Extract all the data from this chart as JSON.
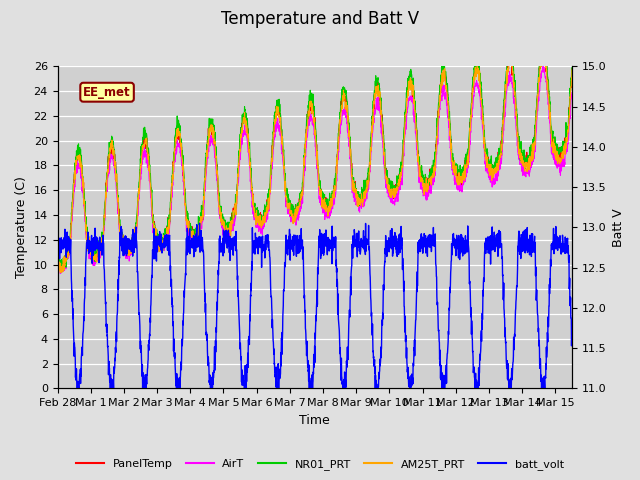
{
  "title": "Temperature and Batt V",
  "xlabel": "Time",
  "ylabel_left": "Temperature (C)",
  "ylabel_right": "Batt V",
  "ylim_left": [
    0,
    26
  ],
  "ylim_right": [
    11.0,
    15.0
  ],
  "yticks_left": [
    0,
    2,
    4,
    6,
    8,
    10,
    12,
    14,
    16,
    18,
    20,
    22,
    24,
    26
  ],
  "yticks_right": [
    11.0,
    11.5,
    12.0,
    12.5,
    13.0,
    13.5,
    14.0,
    14.5,
    15.0
  ],
  "background_color": "#e0e0e0",
  "plot_bg_color": "#d0d0d0",
  "grid_color": "#ffffff",
  "annotation_text": "EE_met",
  "annotation_bg": "#ffffa0",
  "annotation_border": "#8b0000",
  "annotation_text_color": "#8b0000",
  "series_colors": {
    "PanelTemp": "#ff0000",
    "AirT": "#ff00ff",
    "NR01_PRT": "#00cc00",
    "AM25T_PRT": "#ffa500",
    "batt_volt": "#0000ff"
  },
  "legend_entries": [
    "PanelTemp",
    "AirT",
    "NR01_PRT",
    "AM25T_PRT",
    "batt_volt"
  ],
  "xlim": [
    0,
    15.5
  ],
  "xtick_positions": [
    0,
    1,
    2,
    3,
    4,
    5,
    6,
    7,
    8,
    9,
    10,
    11,
    12,
    13,
    14,
    15
  ],
  "xtick_labels": [
    "Feb 28",
    "Mar 1",
    "Mar 2",
    "Mar 3",
    "Mar 4",
    "Mar 5",
    "Mar 6",
    "Mar 7",
    "Mar 8",
    "Mar 9",
    "Mar 10",
    "Mar 11",
    "Mar 12",
    "Mar 13",
    "Mar 14",
    "Mar 15"
  ],
  "title_fontsize": 12,
  "axis_fontsize": 9,
  "tick_fontsize": 8,
  "legend_fontsize": 8
}
